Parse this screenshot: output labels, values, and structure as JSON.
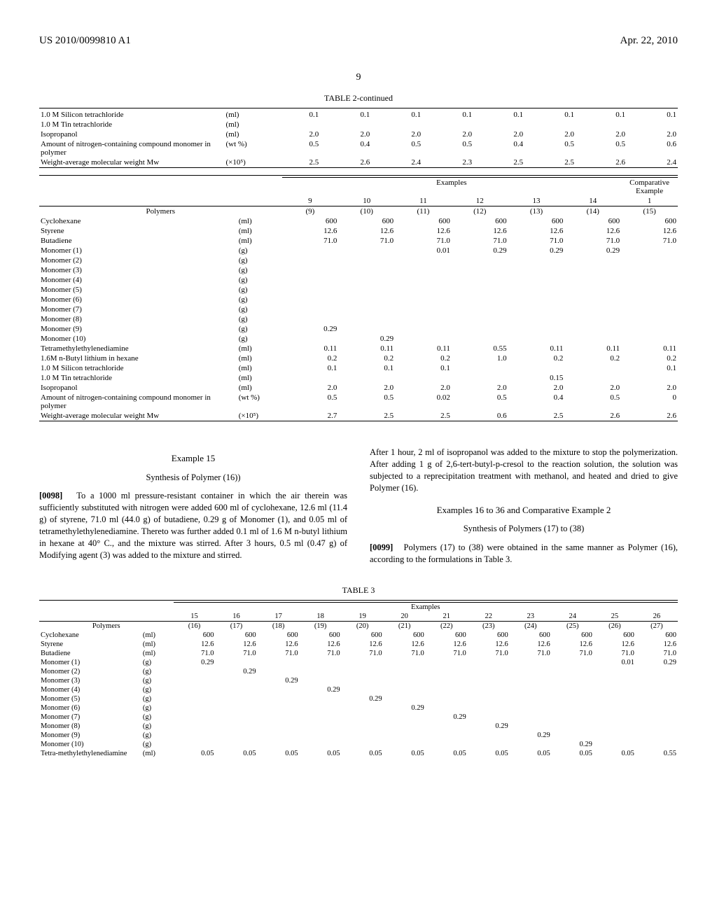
{
  "header": {
    "pub_num": "US 2010/0099810 A1",
    "pub_date": "Apr. 22, 2010",
    "page": "9"
  },
  "table2a": {
    "title": "TABLE 2-continued",
    "rows": [
      {
        "name": "1.0 M Silicon tetrachloride",
        "unit": "(ml)",
        "v": [
          "0.1",
          "0.1",
          "0.1",
          "0.1",
          "0.1",
          "0.1",
          "0.1",
          "0.1"
        ]
      },
      {
        "name": "1.0 M Tin tetrachloride",
        "unit": "(ml)",
        "v": [
          "",
          "",
          "",
          "",
          "",
          "",
          "",
          ""
        ]
      },
      {
        "name": "Isopropanol",
        "unit": "(ml)",
        "v": [
          "2.0",
          "2.0",
          "2.0",
          "2.0",
          "2.0",
          "2.0",
          "2.0",
          "2.0"
        ]
      },
      {
        "name": "Amount of nitrogen-containing compound monomer in polymer",
        "unit": "(wt %)",
        "v": [
          "0.5",
          "0.4",
          "0.5",
          "0.5",
          "0.4",
          "0.5",
          "0.5",
          "0.6"
        ]
      },
      {
        "name": "Weight-average molecular weight Mw",
        "unit": "(×10⁵)",
        "v": [
          "2.5",
          "2.6",
          "2.4",
          "2.3",
          "2.5",
          "2.5",
          "2.6",
          "2.4"
        ]
      }
    ]
  },
  "table2b": {
    "group1": "Examples",
    "group2": "Comparative Example",
    "exnums": [
      "9",
      "10",
      "11",
      "12",
      "13",
      "14",
      "1"
    ],
    "polymers_label": "Polymers",
    "polymers": [
      "(9)",
      "(10)",
      "(11)",
      "(12)",
      "(13)",
      "(14)",
      "(15)"
    ],
    "rows": [
      {
        "name": "Cyclohexane",
        "unit": "(ml)",
        "v": [
          "600",
          "600",
          "600",
          "600",
          "600",
          "600",
          "600"
        ]
      },
      {
        "name": "Styrene",
        "unit": "(ml)",
        "v": [
          "12.6",
          "12.6",
          "12.6",
          "12.6",
          "12.6",
          "12.6",
          "12.6"
        ]
      },
      {
        "name": "Butadiene",
        "unit": "(ml)",
        "v": [
          "71.0",
          "71.0",
          "71.0",
          "71.0",
          "71.0",
          "71.0",
          "71.0"
        ]
      },
      {
        "name": "Monomer (1)",
        "unit": "(g)",
        "v": [
          "",
          "",
          "0.01",
          "0.29",
          "0.29",
          "0.29",
          ""
        ]
      },
      {
        "name": "Monomer (2)",
        "unit": "(g)",
        "v": [
          "",
          "",
          "",
          "",
          "",
          "",
          ""
        ]
      },
      {
        "name": "Monomer (3)",
        "unit": "(g)",
        "v": [
          "",
          "",
          "",
          "",
          "",
          "",
          ""
        ]
      },
      {
        "name": "Monomer (4)",
        "unit": "(g)",
        "v": [
          "",
          "",
          "",
          "",
          "",
          "",
          ""
        ]
      },
      {
        "name": "Monomer (5)",
        "unit": "(g)",
        "v": [
          "",
          "",
          "",
          "",
          "",
          "",
          ""
        ]
      },
      {
        "name": "Monomer (6)",
        "unit": "(g)",
        "v": [
          "",
          "",
          "",
          "",
          "",
          "",
          ""
        ]
      },
      {
        "name": "Monomer (7)",
        "unit": "(g)",
        "v": [
          "",
          "",
          "",
          "",
          "",
          "",
          ""
        ]
      },
      {
        "name": "Monomer (8)",
        "unit": "(g)",
        "v": [
          "",
          "",
          "",
          "",
          "",
          "",
          ""
        ]
      },
      {
        "name": "Monomer (9)",
        "unit": "(g)",
        "v": [
          "0.29",
          "",
          "",
          "",
          "",
          "",
          ""
        ]
      },
      {
        "name": "Monomer (10)",
        "unit": "(g)",
        "v": [
          "",
          "0.29",
          "",
          "",
          "",
          "",
          ""
        ]
      },
      {
        "name": "Tetramethylethylenediamine",
        "unit": "(ml)",
        "v": [
          "0.11",
          "0.11",
          "0.11",
          "0.55",
          "0.11",
          "0.11",
          "0.11"
        ]
      },
      {
        "name": "1.6M n-Butyl lithium in hexane",
        "unit": "(ml)",
        "v": [
          "0.2",
          "0.2",
          "0.2",
          "1.0",
          "0.2",
          "0.2",
          "0.2"
        ]
      },
      {
        "name": "1.0 M Silicon tetrachloride",
        "unit": "(ml)",
        "v": [
          "0.1",
          "0.1",
          "0.1",
          "",
          "",
          "",
          "0.1"
        ]
      },
      {
        "name": "1.0 M Tin tetrachloride",
        "unit": "(ml)",
        "v": [
          "",
          "",
          "",
          "",
          "0.15",
          "",
          ""
        ]
      },
      {
        "name": "Isopropanol",
        "unit": "(ml)",
        "v": [
          "2.0",
          "2.0",
          "2.0",
          "2.0",
          "2.0",
          "2.0",
          "2.0"
        ]
      },
      {
        "name": "Amount of nitrogen-containing compound monomer in polymer",
        "unit": "(wt %)",
        "v": [
          "0.5",
          "0.5",
          "0.02",
          "0.5",
          "0.4",
          "0.5",
          "0"
        ]
      },
      {
        "name": "Weight-average molecular weight Mw",
        "unit": "(×10⁵)",
        "v": [
          "2.7",
          "2.5",
          "2.5",
          "0.6",
          "2.5",
          "2.6",
          "2.6"
        ]
      }
    ]
  },
  "body": {
    "ex15_title": "Example 15",
    "ex15_sub": "Synthesis of Polymer (16))",
    "p98_num": "[0098]",
    "p98_a": "To a 1000 ml pressure-resistant container in which the air therein was sufficiently substituted with nitrogen were added 600 ml of cyclohexane, 12.6 ml (11.4 g) of styrene, 71.0 ml (44.0 g) of butadiene, 0.29 g of Monomer (1), and 0.05 ml of tetramethylethylenediamine. Thereto was further added 0.1 ml of 1.6 M n-butyl lithium in hexane at 40° C., and the mixture was stirred. After 3 hours, 0.5 ml (0.47 g) of Modifying agent (3) was added to the mixture and stirred.",
    "p98_b": "After 1 hour, 2 ml of isopropanol was added to the mixture to stop the polymerization. After adding 1 g of 2,6-tert-butyl-p-cresol to the reaction solution, the solution was subjected to a reprecipitation treatment with methanol, and heated and dried to give Polymer (16).",
    "ex16_title": "Examples 16 to 36 and Comparative Example 2",
    "ex16_sub": "Synthesis of Polymers (17) to (38)",
    "p99_num": "[0099]",
    "p99": "Polymers (17) to (38) were obtained in the same manner as Polymer (16), according to the formulations in Table 3."
  },
  "table3": {
    "title": "TABLE 3",
    "group": "Examples",
    "exnums": [
      "15",
      "16",
      "17",
      "18",
      "19",
      "20",
      "21",
      "22",
      "23",
      "24",
      "25",
      "26"
    ],
    "polymers_label": "Polymers",
    "polymers": [
      "(16)",
      "(17)",
      "(18)",
      "(19)",
      "(20)",
      "(21)",
      "(22)",
      "(23)",
      "(24)",
      "(25)",
      "(26)",
      "(27)"
    ],
    "rows": [
      {
        "name": "Cyclohexane",
        "unit": "(ml)",
        "v": [
          "600",
          "600",
          "600",
          "600",
          "600",
          "600",
          "600",
          "600",
          "600",
          "600",
          "600",
          "600"
        ]
      },
      {
        "name": "Styrene",
        "unit": "(ml)",
        "v": [
          "12.6",
          "12.6",
          "12.6",
          "12.6",
          "12.6",
          "12.6",
          "12.6",
          "12.6",
          "12.6",
          "12.6",
          "12.6",
          "12.6"
        ]
      },
      {
        "name": "Butadiene",
        "unit": "(ml)",
        "v": [
          "71.0",
          "71.0",
          "71.0",
          "71.0",
          "71.0",
          "71.0",
          "71.0",
          "71.0",
          "71.0",
          "71.0",
          "71.0",
          "71.0"
        ]
      },
      {
        "name": "Monomer (1)",
        "unit": "(g)",
        "v": [
          "0.29",
          "",
          "",
          "",
          "",
          "",
          "",
          "",
          "",
          "",
          "0.01",
          "0.29"
        ]
      },
      {
        "name": "Monomer (2)",
        "unit": "(g)",
        "v": [
          "",
          "0.29",
          "",
          "",
          "",
          "",
          "",
          "",
          "",
          "",
          "",
          ""
        ]
      },
      {
        "name": "Monomer (3)",
        "unit": "(g)",
        "v": [
          "",
          "",
          "0.29",
          "",
          "",
          "",
          "",
          "",
          "",
          "",
          "",
          ""
        ]
      },
      {
        "name": "Monomer (4)",
        "unit": "(g)",
        "v": [
          "",
          "",
          "",
          "0.29",
          "",
          "",
          "",
          "",
          "",
          "",
          "",
          ""
        ]
      },
      {
        "name": "Monomer (5)",
        "unit": "(g)",
        "v": [
          "",
          "",
          "",
          "",
          "0.29",
          "",
          "",
          "",
          "",
          "",
          "",
          ""
        ]
      },
      {
        "name": "Monomer (6)",
        "unit": "(g)",
        "v": [
          "",
          "",
          "",
          "",
          "",
          "0.29",
          "",
          "",
          "",
          "",
          "",
          ""
        ]
      },
      {
        "name": "Monomer (7)",
        "unit": "(g)",
        "v": [
          "",
          "",
          "",
          "",
          "",
          "",
          "0.29",
          "",
          "",
          "",
          "",
          ""
        ]
      },
      {
        "name": "Monomer (8)",
        "unit": "(g)",
        "v": [
          "",
          "",
          "",
          "",
          "",
          "",
          "",
          "0.29",
          "",
          "",
          "",
          ""
        ]
      },
      {
        "name": "Monomer (9)",
        "unit": "(g)",
        "v": [
          "",
          "",
          "",
          "",
          "",
          "",
          "",
          "",
          "0.29",
          "",
          "",
          ""
        ]
      },
      {
        "name": "Monomer (10)",
        "unit": "(g)",
        "v": [
          "",
          "",
          "",
          "",
          "",
          "",
          "",
          "",
          "",
          "0.29",
          "",
          ""
        ]
      },
      {
        "name": "Tetra-methylethylenediamine",
        "unit": "(ml)",
        "v": [
          "0.05",
          "0.05",
          "0.05",
          "0.05",
          "0.05",
          "0.05",
          "0.05",
          "0.05",
          "0.05",
          "0.05",
          "0.05",
          "0.55"
        ]
      }
    ]
  }
}
